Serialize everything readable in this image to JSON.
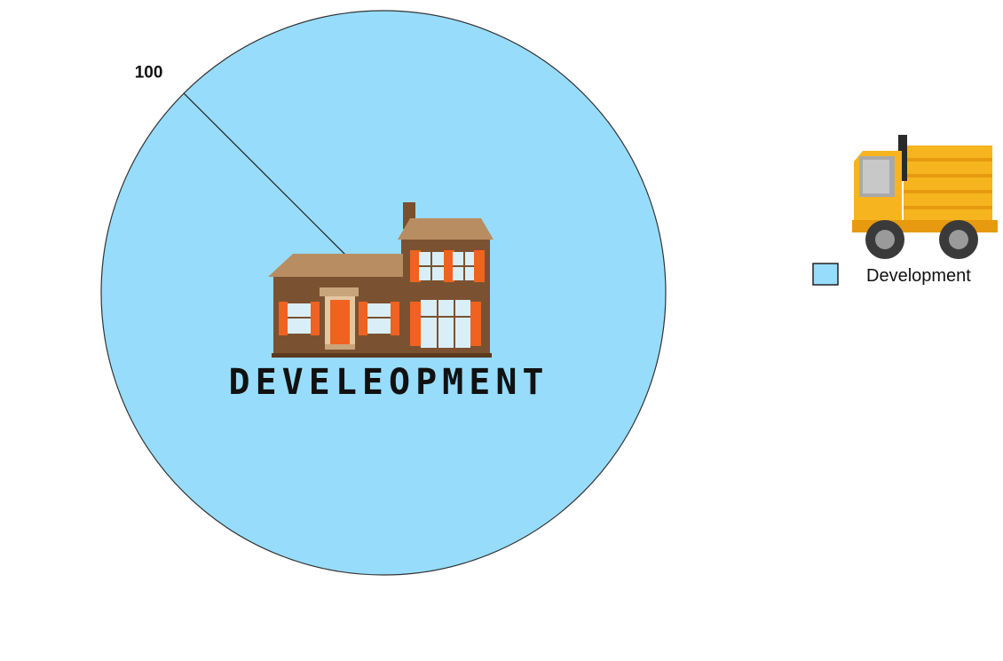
{
  "chart_data": {
    "type": "pie",
    "categories": [
      "Development"
    ],
    "values": [
      100
    ],
    "data_labels": [
      "100"
    ],
    "colors": [
      "#97dcfb"
    ],
    "legend": {
      "entries": [
        "Development"
      ],
      "position": "right"
    },
    "title": "",
    "center_image_text": "DEVELEOPMENT"
  },
  "images": {
    "center": "house-illustration",
    "legend": "truck-illustration"
  }
}
